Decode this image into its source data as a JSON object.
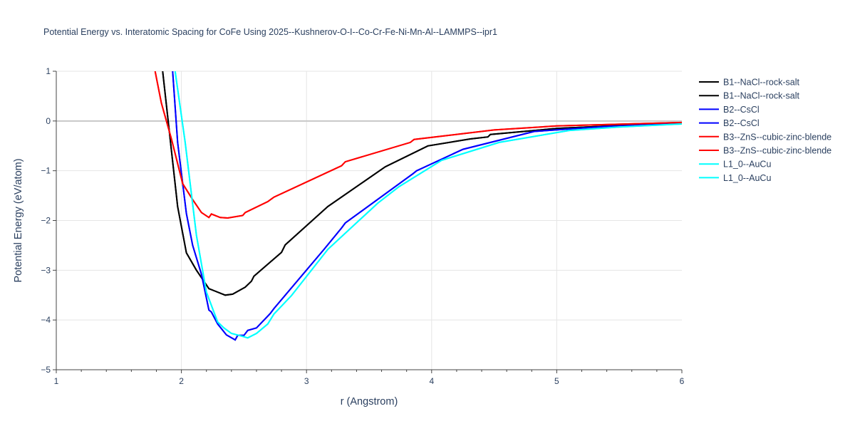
{
  "chart_data": {
    "type": "line",
    "title": "Potential Energy vs. Interatomic Spacing for CoFe Using 2025--Kushnerov-O-I--Co-Cr-Fe-Ni-Mn-Al--LAMMPS--ipr1",
    "xlabel": "r (Angstrom)",
    "ylabel": "Potential Energy (eV/atom)",
    "xlim": [
      1,
      6
    ],
    "ylim": [
      -5,
      1
    ],
    "xticks": [
      1,
      2,
      3,
      4,
      5,
      6
    ],
    "yticks": [
      1,
      0,
      -1,
      -2,
      -3,
      -4,
      -5
    ],
    "grid": true,
    "legend": "right",
    "series": [
      {
        "name": "B1--NaCl--rock-salt",
        "color": "#000000",
        "x": [
          1.85,
          1.97,
          2.04,
          2.12,
          2.22,
          2.26,
          2.35,
          2.41,
          2.51,
          2.56,
          2.58,
          2.8,
          2.83,
          3.17,
          3.63,
          3.97,
          4.31,
          4.45,
          4.47,
          5.0,
          5.5,
          6.0
        ],
        "y": [
          1.0,
          -1.72,
          -2.65,
          -3.0,
          -3.37,
          -3.41,
          -3.5,
          -3.48,
          -3.34,
          -3.22,
          -3.12,
          -2.64,
          -2.49,
          -1.72,
          -0.92,
          -0.5,
          -0.36,
          -0.32,
          -0.27,
          -0.15,
          -0.09,
          -0.05
        ]
      },
      {
        "name": "B1--NaCl--rock-salt",
        "color": "#000000",
        "x": [
          1.85,
          1.97,
          2.04,
          2.12,
          2.22,
          2.26,
          2.35,
          2.41,
          2.51,
          2.56,
          2.58,
          2.8,
          2.83,
          3.17,
          3.63,
          3.97,
          4.31,
          4.45,
          4.47,
          5.0,
          5.5,
          6.0
        ],
        "y": [
          1.0,
          -1.72,
          -2.65,
          -3.0,
          -3.37,
          -3.41,
          -3.5,
          -3.48,
          -3.34,
          -3.22,
          -3.12,
          -2.64,
          -2.49,
          -1.72,
          -0.92,
          -0.5,
          -0.36,
          -0.32,
          -0.27,
          -0.15,
          -0.09,
          -0.05
        ]
      },
      {
        "name": "B2--CsCl",
        "color": "#0000ff",
        "x": [
          1.93,
          1.97,
          2.04,
          2.09,
          2.16,
          2.22,
          2.24,
          2.29,
          2.36,
          2.43,
          2.45,
          2.5,
          2.53,
          2.6,
          2.71,
          2.74,
          3.14,
          3.28,
          3.31,
          3.85,
          3.88,
          4.25,
          4.82,
          5.4,
          6.0
        ],
        "y": [
          1.0,
          -0.43,
          -1.86,
          -2.5,
          -3.08,
          -3.8,
          -3.84,
          -4.08,
          -4.3,
          -4.4,
          -4.31,
          -4.31,
          -4.21,
          -4.16,
          -3.87,
          -3.77,
          -2.58,
          -2.15,
          -2.05,
          -1.06,
          -1.0,
          -0.57,
          -0.21,
          -0.11,
          -0.05
        ]
      },
      {
        "name": "B2--CsCl",
        "color": "#0000ff",
        "x": [
          1.93,
          1.97,
          2.04,
          2.09,
          2.16,
          2.22,
          2.24,
          2.29,
          2.36,
          2.43,
          2.45,
          2.5,
          2.53,
          2.6,
          2.71,
          2.74,
          3.14,
          3.28,
          3.31,
          3.85,
          3.88,
          4.25,
          4.82,
          5.4,
          6.0
        ],
        "y": [
          1.0,
          -0.43,
          -1.86,
          -2.5,
          -3.08,
          -3.8,
          -3.84,
          -4.08,
          -4.3,
          -4.4,
          -4.31,
          -4.31,
          -4.21,
          -4.16,
          -3.87,
          -3.77,
          -2.58,
          -2.15,
          -2.05,
          -1.06,
          -1.0,
          -0.57,
          -0.21,
          -0.11,
          -0.05
        ]
      },
      {
        "name": "B3--ZnS--cubic-zinc-blende",
        "color": "#ff0000",
        "x": [
          1.79,
          1.84,
          1.92,
          2.01,
          2.09,
          2.16,
          2.22,
          2.24,
          2.31,
          2.37,
          2.49,
          2.51,
          2.69,
          2.74,
          3.28,
          3.31,
          3.83,
          3.86,
          4.5,
          5.0,
          6.0
        ],
        "y": [
          1.0,
          0.36,
          -0.36,
          -1.26,
          -1.58,
          -1.84,
          -1.94,
          -1.87,
          -1.94,
          -1.95,
          -1.9,
          -1.84,
          -1.62,
          -1.53,
          -0.9,
          -0.82,
          -0.43,
          -0.37,
          -0.18,
          -0.1,
          -0.03
        ]
      },
      {
        "name": "B3--ZnS--cubic-zinc-blende",
        "color": "#ff0000",
        "x": [
          1.79,
          1.84,
          1.92,
          2.01,
          2.09,
          2.16,
          2.22,
          2.24,
          2.31,
          2.37,
          2.49,
          2.51,
          2.69,
          2.74,
          3.28,
          3.31,
          3.83,
          3.86,
          4.5,
          5.0,
          6.0
        ],
        "y": [
          1.0,
          0.36,
          -0.36,
          -1.26,
          -1.58,
          -1.84,
          -1.94,
          -1.87,
          -1.94,
          -1.95,
          -1.9,
          -1.84,
          -1.62,
          -1.53,
          -0.9,
          -0.82,
          -0.43,
          -0.37,
          -0.18,
          -0.1,
          -0.03
        ]
      },
      {
        "name": "L1_0--AuCu",
        "color": "#00ffff",
        "x": [
          1.95,
          2.03,
          2.12,
          2.2,
          2.29,
          2.34,
          2.4,
          2.49,
          2.53,
          2.6,
          2.69,
          2.74,
          2.88,
          3.17,
          3.57,
          3.74,
          4.08,
          4.54,
          5.1,
          5.5,
          6.0
        ],
        "y": [
          1.0,
          -0.43,
          -2.3,
          -3.44,
          -4.04,
          -4.16,
          -4.27,
          -4.33,
          -4.36,
          -4.27,
          -4.08,
          -3.88,
          -3.51,
          -2.58,
          -1.65,
          -1.32,
          -0.79,
          -0.43,
          -0.19,
          -0.12,
          -0.06
        ]
      },
      {
        "name": "L1_0--AuCu",
        "color": "#00ffff",
        "x": [
          1.95,
          2.03,
          2.12,
          2.2,
          2.29,
          2.34,
          2.4,
          2.49,
          2.53,
          2.6,
          2.69,
          2.74,
          2.88,
          3.17,
          3.57,
          3.74,
          4.08,
          4.54,
          5.1,
          5.5,
          6.0
        ],
        "y": [
          1.0,
          -0.43,
          -2.3,
          -3.44,
          -4.04,
          -4.16,
          -4.27,
          -4.33,
          -4.36,
          -4.27,
          -4.08,
          -3.88,
          -3.51,
          -2.58,
          -1.65,
          -1.32,
          -0.79,
          -0.43,
          -0.19,
          -0.12,
          -0.06
        ]
      }
    ]
  }
}
